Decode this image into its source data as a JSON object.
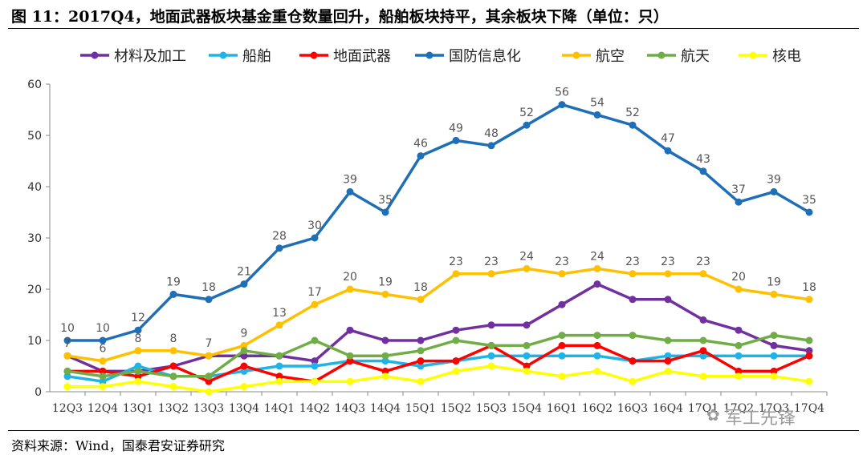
{
  "header": {
    "title": "图 11：2017Q4，地面武器板块基金重仓数量回升，船舶板块持平，其余板块下降（单位：只）"
  },
  "footer": {
    "source": "资料来源：Wind，国泰君安证券研究",
    "watermark": "军工先锋"
  },
  "chart_data": {
    "type": "line",
    "title": "",
    "xlabel": "",
    "ylabel": "",
    "ylim": [
      0,
      60
    ],
    "yticks": [
      0,
      10,
      20,
      30,
      40,
      50,
      60
    ],
    "categories": [
      "12Q3",
      "12Q4",
      "13Q1",
      "13Q2",
      "13Q3",
      "13Q4",
      "14Q1",
      "14Q2",
      "14Q3",
      "14Q4",
      "15Q1",
      "15Q2",
      "15Q3",
      "15Q4",
      "16Q1",
      "16Q2",
      "16Q3",
      "16Q4",
      "17Q1",
      "17Q2",
      "17Q3",
      "17Q4"
    ],
    "series": [
      {
        "name": "材料及加工",
        "color": "#7030a0",
        "labels": false,
        "values": [
          7,
          4,
          4,
          5,
          7,
          7,
          7,
          6,
          12,
          10,
          10,
          12,
          13,
          13,
          17,
          21,
          18,
          18,
          14,
          12,
          9,
          8
        ]
      },
      {
        "name": "船舶",
        "color": "#1fb4e8",
        "labels": false,
        "values": [
          3,
          2,
          5,
          3,
          3,
          4,
          5,
          5,
          6,
          6,
          5,
          6,
          7,
          7,
          7,
          7,
          6,
          7,
          7,
          7,
          7,
          7
        ]
      },
      {
        "name": "地面武器",
        "color": "#ff0000",
        "labels": false,
        "values": [
          4,
          4,
          3,
          5,
          2,
          5,
          3,
          2,
          6,
          4,
          6,
          6,
          9,
          5,
          9,
          9,
          6,
          6,
          8,
          4,
          4,
          7
        ]
      },
      {
        "name": "国防信息化",
        "color": "#1f6fb8",
        "labels": true,
        "values": [
          10,
          10,
          12,
          19,
          18,
          21,
          28,
          30,
          39,
          35,
          46,
          49,
          48,
          52,
          56,
          54,
          52,
          47,
          43,
          37,
          39,
          35
        ]
      },
      {
        "name": "航空",
        "color": "#ffc000",
        "labels": true,
        "values": [
          7,
          6,
          8,
          8,
          7,
          9,
          13,
          17,
          20,
          19,
          18,
          23,
          23,
          24,
          23,
          24,
          23,
          23,
          23,
          20,
          19,
          18
        ]
      },
      {
        "name": "航天",
        "color": "#70ad47",
        "labels": false,
        "values": [
          4,
          3,
          4,
          3,
          3,
          8,
          7,
          10,
          7,
          7,
          8,
          10,
          9,
          9,
          11,
          11,
          11,
          10,
          10,
          9,
          11,
          10
        ]
      },
      {
        "name": "核电",
        "color": "#ffff00",
        "labels": false,
        "values": [
          1,
          1,
          2,
          1,
          0,
          1,
          2,
          2,
          2,
          3,
          2,
          4,
          5,
          4,
          3,
          4,
          2,
          4,
          3,
          3,
          3,
          2
        ]
      }
    ]
  }
}
